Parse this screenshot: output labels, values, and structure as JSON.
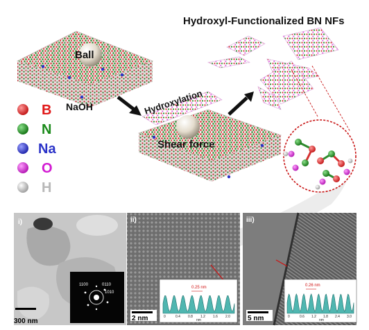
{
  "title": "Hydroxyl-Functionalized BN NFs",
  "diagram": {
    "ball_label": "Ball",
    "naoh_label": "NaOH",
    "hydroxylation_label": "Hydroxylation",
    "shear_label": "Shear force"
  },
  "legend": [
    {
      "symbol": "B",
      "color": "#e01818"
    },
    {
      "symbol": "N",
      "color": "#1a8a1a"
    },
    {
      "symbol": "Na",
      "color": "#2a32c8"
    },
    {
      "symbol": "O",
      "color": "#d21ad2"
    },
    {
      "symbol": "H",
      "color": "#b8b8b8"
    }
  ],
  "panels": [
    {
      "id": "i)",
      "scale_bar": "300 nm",
      "saed_labels": [
        "1100",
        "0110",
        "1010"
      ]
    },
    {
      "id": "ii)",
      "scale_bar": "2 nm",
      "spacing": "0.25 nm",
      "profile_ticks": [
        "0",
        "0.4",
        "0.8",
        "1.2",
        "1.6",
        "2.0"
      ],
      "profile_unit": "nm"
    },
    {
      "id": "iii)",
      "scale_bar": "5 nm",
      "spacing": "0.26 nm",
      "profile_ticks": [
        "0",
        "0.6",
        "1.2",
        "1.8",
        "2.4",
        "3.0"
      ],
      "profile_unit": "nm"
    }
  ]
}
